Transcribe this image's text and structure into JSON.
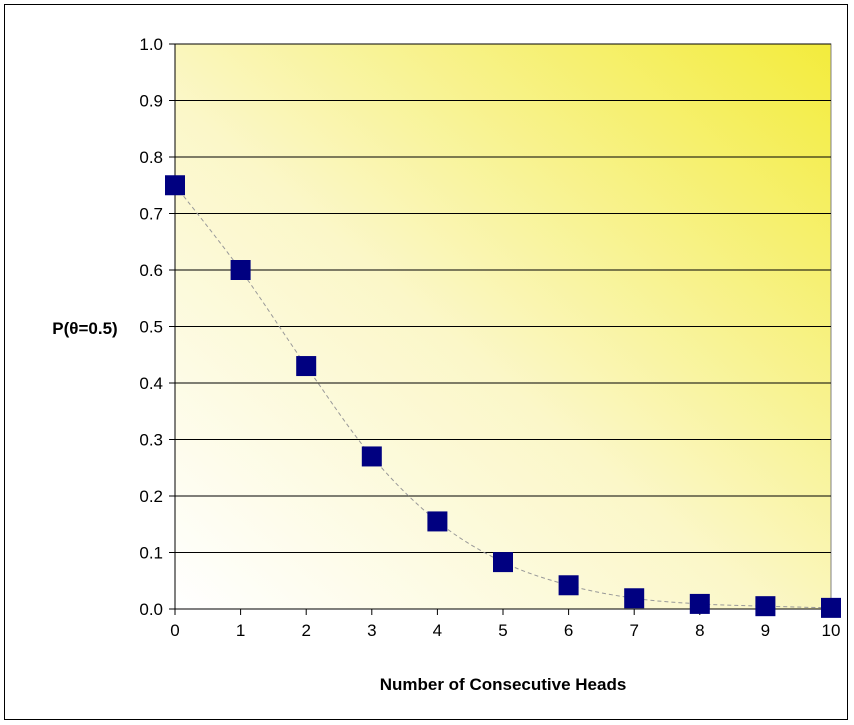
{
  "chart_data": {
    "type": "scatter",
    "title": "",
    "xlabel": "Number of Consecutive Heads",
    "ylabel": "P(θ=0.5)",
    "xlim": [
      0,
      10
    ],
    "ylim": [
      0,
      1.0
    ],
    "x_ticks": [
      "0",
      "1",
      "2",
      "3",
      "4",
      "5",
      "6",
      "7",
      "8",
      "9",
      "10"
    ],
    "y_ticks": [
      "0.0",
      "0.1",
      "0.2",
      "0.3",
      "0.4",
      "0.5",
      "0.6",
      "0.7",
      "0.8",
      "0.9",
      "1.0"
    ],
    "grid": true,
    "legend": "none",
    "trendline": "dashed",
    "series": [
      {
        "x": [
          0,
          1,
          2,
          3,
          4,
          5,
          6,
          7,
          8,
          9,
          10
        ],
        "values": [
          0.75,
          0.6,
          0.43,
          0.27,
          0.155,
          0.083,
          0.042,
          0.019,
          0.009,
          0.005,
          0.002
        ]
      }
    ],
    "colors": {
      "marker": "#000080",
      "plot_bg_start": "#ffffff",
      "plot_bg_end": "#f3ec3c",
      "trendline": "#999999"
    }
  }
}
